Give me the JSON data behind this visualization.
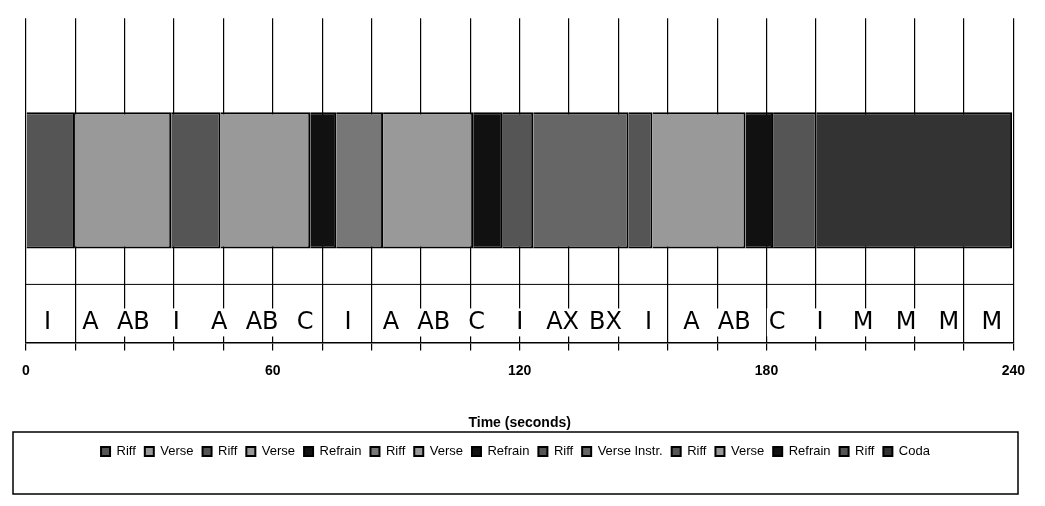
{
  "chart_data": {
    "type": "bar",
    "orientation": "horizontal",
    "stacked": true,
    "xlabel": "Time (seconds)",
    "categories": [
      null
    ],
    "series": [
      {
        "name": "Riff",
        "color": "#555555",
        "values": [
          11.9
        ]
      },
      {
        "name": "Verse",
        "color": "#999999",
        "values": [
          23.4
        ]
      },
      {
        "name": "Riff",
        "color": "#555555",
        "values": [
          12.0
        ]
      },
      {
        "name": "Verse",
        "color": "#999999",
        "values": [
          21.8
        ]
      },
      {
        "name": "Refrain",
        "color": "#111111",
        "values": [
          6.3
        ]
      },
      {
        "name": "Riff",
        "color": "#777777",
        "values": [
          11.4
        ]
      },
      {
        "name": "Verse",
        "color": "#999999",
        "values": [
          21.9
        ]
      },
      {
        "name": "Refrain",
        "color": "#111111",
        "values": [
          7.2
        ]
      },
      {
        "name": "Riff",
        "color": "#555555",
        "values": [
          7.4
        ]
      },
      {
        "name": "Verse Instr.",
        "color": "#666666",
        "values": [
          23.2
        ]
      },
      {
        "name": "Riff",
        "color": "#555555",
        "values": [
          5.8
        ]
      },
      {
        "name": "Verse",
        "color": "#999999",
        "values": [
          22.6
        ]
      },
      {
        "name": "Refrain",
        "color": "#111111",
        "values": [
          6.7
        ]
      },
      {
        "name": "Riff",
        "color": "#555555",
        "values": [
          10.6
        ]
      },
      {
        "name": "Coda",
        "color": "#333333",
        "values": [
          47.5
        ]
      }
    ],
    "xlim": [
      0,
      240
    ],
    "xticks": [
      0,
      {
        "value": 12,
        "label": null
      },
      {
        "value": 24,
        "label": null
      },
      {
        "value": 36,
        "label": null
      },
      {
        "value": 48,
        "label": null
      },
      60,
      {
        "value": 72,
        "label": null
      },
      {
        "value": 84,
        "label": null
      },
      {
        "value": 96,
        "label": null
      },
      {
        "value": 108,
        "label": null
      },
      120,
      {
        "value": 132,
        "label": null
      },
      {
        "value": 144,
        "label": null
      },
      {
        "value": 156,
        "label": null
      },
      {
        "value": 168,
        "label": null
      },
      180,
      {
        "value": 192,
        "label": null
      },
      {
        "value": 204,
        "label": null
      },
      {
        "value": 216,
        "label": null
      },
      {
        "value": 228,
        "label": null
      },
      240
    ],
    "grid": "x",
    "legend": "bottom",
    "annotations": [
      "I",
      "A",
      "AB",
      "I",
      "A",
      "AB",
      "C",
      "I",
      "A",
      "AB",
      "C",
      "I",
      "AX",
      "BX",
      "I",
      "A",
      "AB",
      "C",
      "I",
      "M",
      "M",
      "M",
      "M"
    ]
  }
}
